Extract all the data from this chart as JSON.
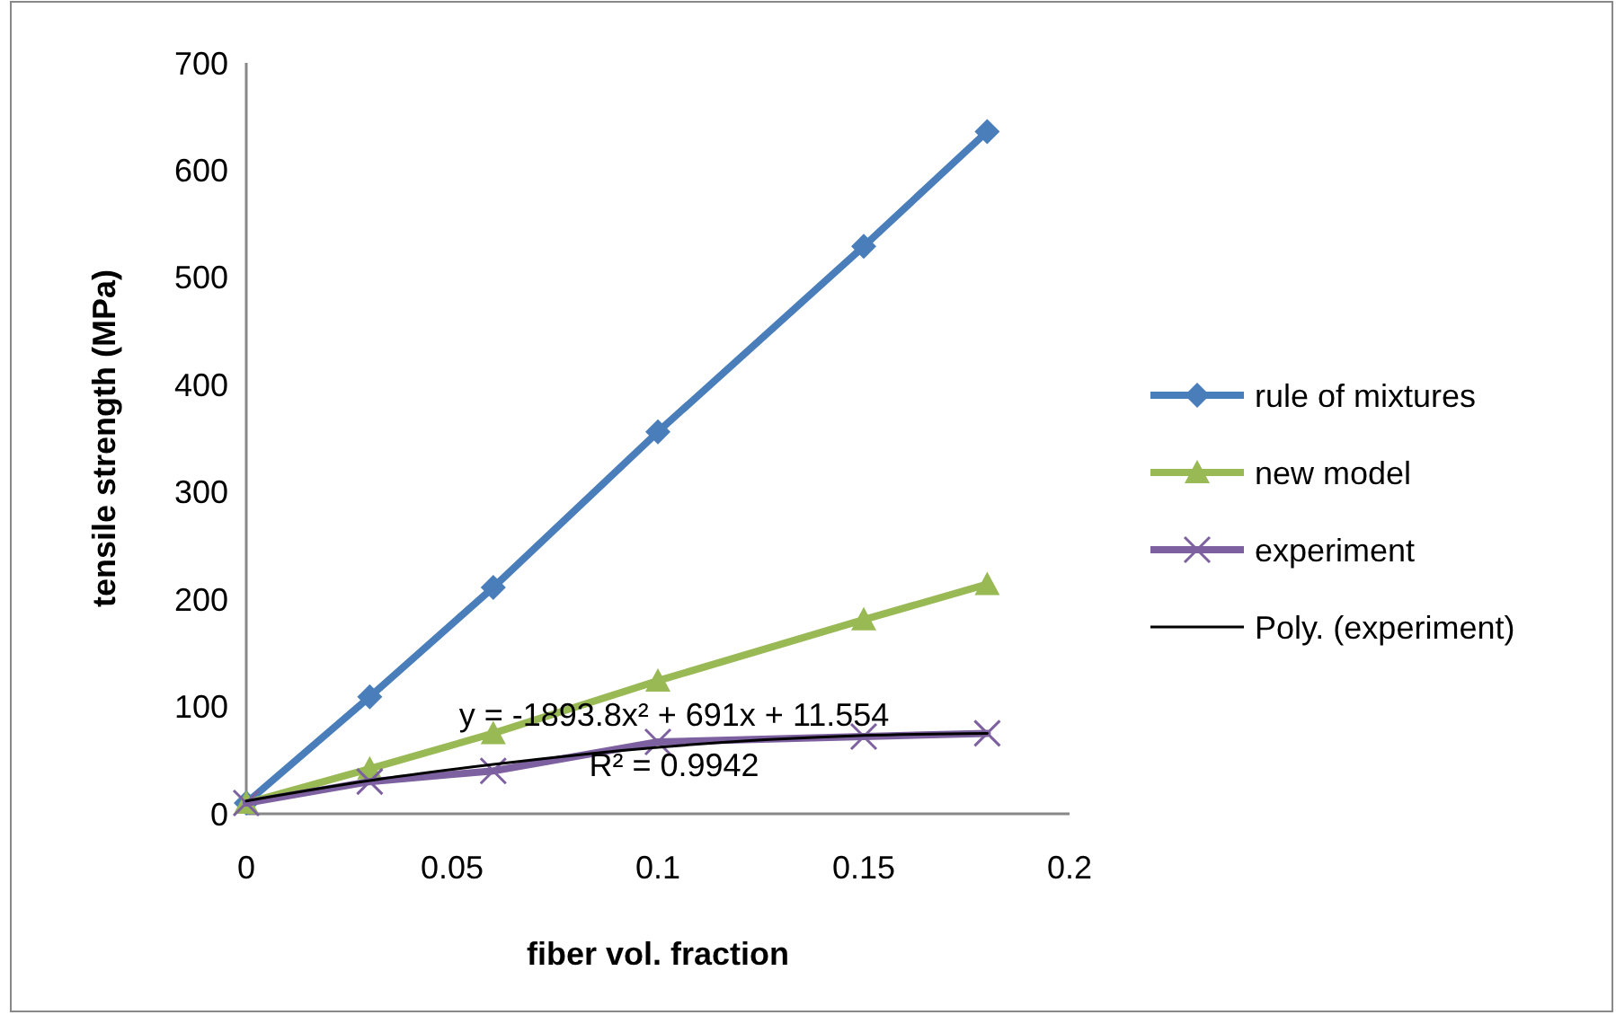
{
  "chart_data": {
    "type": "line",
    "xlabel": "fiber vol. fraction",
    "ylabel": "tensile strength (MPa)",
    "x": [
      0,
      0.03,
      0.06,
      0.1,
      0.15,
      0.18
    ],
    "xlim": [
      0,
      0.2
    ],
    "xticks": [
      0,
      0.05,
      0.1,
      0.15,
      0.2
    ],
    "ylim": [
      0,
      700
    ],
    "yticks": [
      0,
      100,
      200,
      300,
      400,
      500,
      600,
      700
    ],
    "grid": false,
    "legend": "right",
    "line_style": "solid",
    "series": [
      {
        "name": "rule of mixtures",
        "color": "#4a7ebb",
        "marker": "diamond",
        "values": [
          10,
          109,
          211,
          356,
          529,
          636
        ]
      },
      {
        "name": "new model",
        "color": "#98b954",
        "marker": "triangle",
        "values": [
          10,
          42,
          75,
          124,
          181,
          214
        ]
      },
      {
        "name": "experiment",
        "color": "#7d60a0",
        "marker": "cross",
        "values": [
          10,
          30,
          40,
          67,
          72,
          75
        ]
      },
      {
        "name": "Poly. (experiment)",
        "color": "#000000",
        "marker": "none",
        "values": [
          12,
          31,
          46,
          62,
          73,
          75
        ]
      }
    ],
    "annotations": [
      "y = -1893.8x² + 691x + 11.554",
      "R² = 0.9942"
    ]
  }
}
